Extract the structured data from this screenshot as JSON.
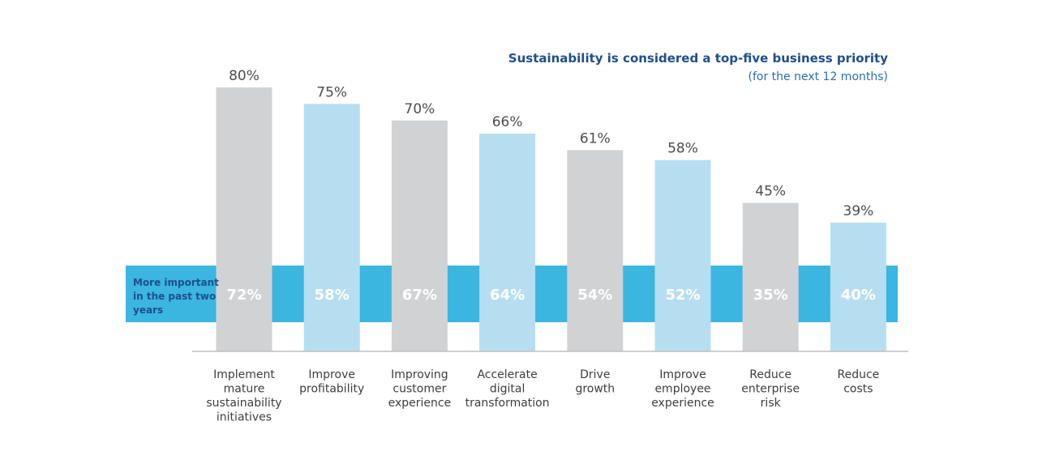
{
  "chart_data": {
    "type": "bar",
    "title": "Sustainability is considered a top-five business priority",
    "subtitle": "(for the next 12 months)",
    "categories": [
      "Implement mature sustainability initiatives",
      "Improve profitability",
      "Improving customer experience",
      "Accelerate digital transformation",
      "Drive growth",
      "Improve employee experience",
      "Reduce enterprise risk",
      "Reduce costs"
    ],
    "category_lines": [
      [
        "Implement",
        "mature",
        "sustainability",
        "initiatives"
      ],
      [
        "Improve",
        "profitability"
      ],
      [
        "Improving",
        "customer",
        "experience"
      ],
      [
        "Accelerate",
        "digital",
        "transformation"
      ],
      [
        "Drive",
        "growth"
      ],
      [
        "Improve",
        "employee",
        "experience"
      ],
      [
        "Reduce",
        "enterprise",
        "risk"
      ],
      [
        "Reduce",
        "costs"
      ]
    ],
    "series": [
      {
        "values": [
          80,
          75,
          70,
          66,
          61,
          58,
          45,
          39
        ],
        "labels": [
          "80%",
          "75%",
          "70%",
          "66%",
          "61%",
          "58%",
          "45%",
          "39%"
        ]
      },
      {
        "name": "More important in the past two years",
        "values": [
          72,
          58,
          67,
          64,
          54,
          52,
          35,
          40
        ],
        "labels": [
          "72%",
          "58%",
          "67%",
          "64%",
          "54%",
          "52%",
          "35%",
          "40%"
        ]
      }
    ],
    "bar_colors": [
      "#d1d2d4",
      "#b6def0"
    ],
    "band_color": "#3ab6e0",
    "ylim": [
      0,
      80
    ],
    "grid": false,
    "legend": "none"
  }
}
